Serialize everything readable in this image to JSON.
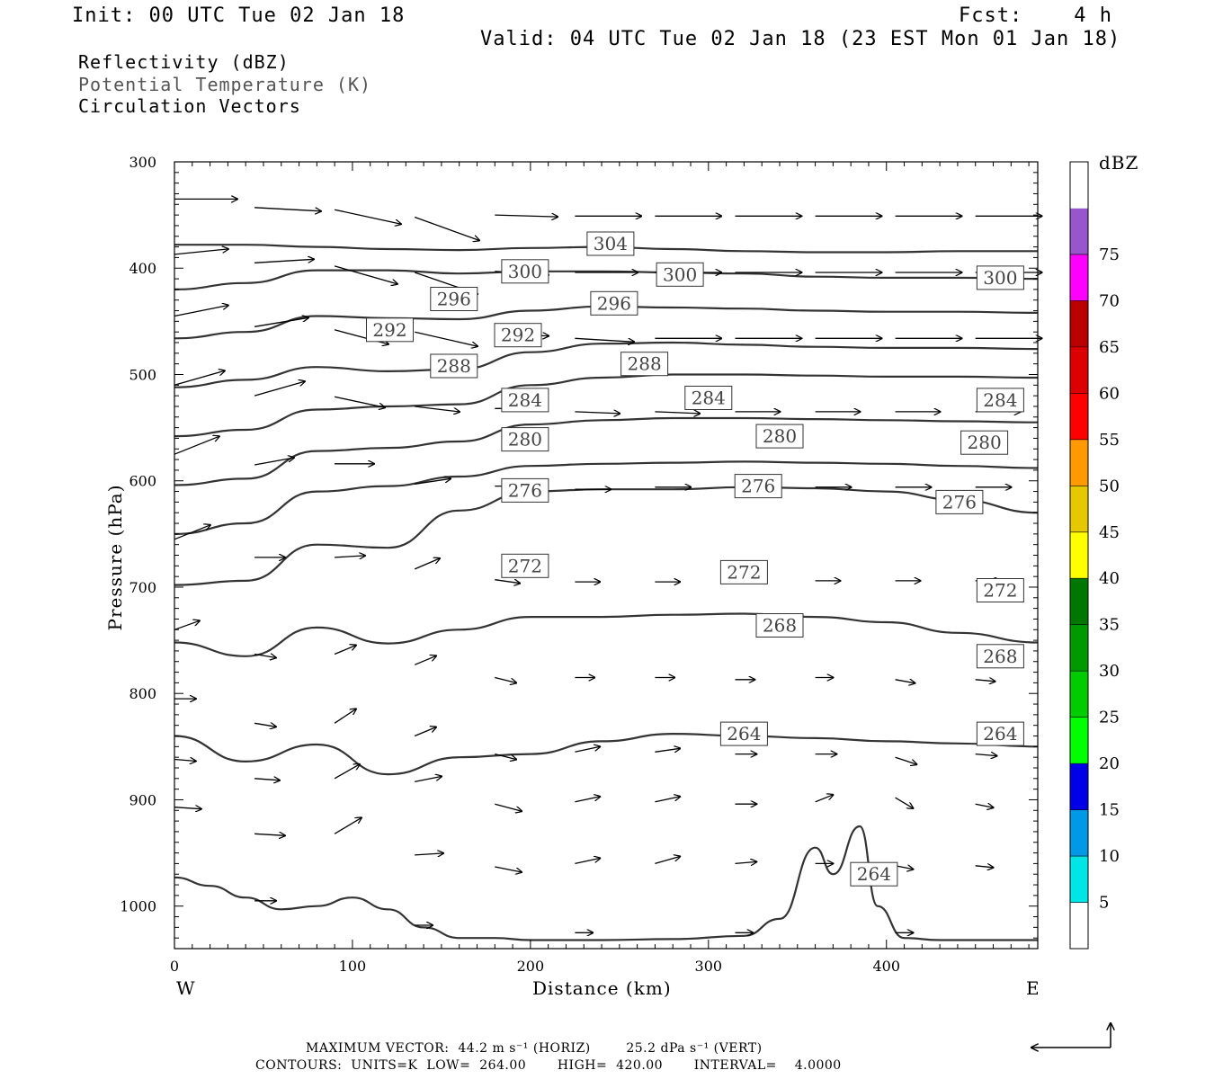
{
  "header": {
    "init": "Init: 00 UTC Tue 02 Jan 18",
    "fcst": "Fcst:    4 h",
    "valid": "Valid: 04 UTC Tue 02 Jan 18 (23 EST Mon 01 Jan 18)",
    "fields": [
      "Reflectivity (dBZ)",
      "Potential Temperature (K)",
      "Circulation Vectors"
    ]
  },
  "footer": {
    "max_vector": "MAXIMUM VECTOR:  44.2 m s⁻¹ (HORIZ)        25.2 dPa s⁻¹ (VERT)",
    "contours": "CONTOURS:  UNITS=K  LOW=  264.00       HIGH=  420.00       INTERVAL=    4.0000"
  },
  "colors": {
    "contour": "#333333",
    "vector": "#000000",
    "frame": "#000000"
  },
  "chart_data": {
    "type": "line",
    "xlabel": "Distance (km)",
    "ylabel": "Pressure (hPa)",
    "xlim": [
      0,
      485
    ],
    "ylim": [
      1040,
      300
    ],
    "x_ticks": [
      0,
      100,
      200,
      300,
      400
    ],
    "y_ticks": [
      300,
      400,
      500,
      600,
      700,
      800,
      900,
      1000
    ],
    "x_end_labels": {
      "left": "W",
      "right": "E"
    },
    "colorbar": {
      "title": "dBZ",
      "ticks": [
        5,
        10,
        15,
        20,
        25,
        30,
        35,
        40,
        45,
        50,
        55,
        60,
        65,
        70,
        75
      ],
      "colors": [
        "#ffffff",
        "#00e6e6",
        "#0099e6",
        "#0000e6",
        "#00ff00",
        "#00cc00",
        "#009900",
        "#007700",
        "#ffff00",
        "#e6c800",
        "#ff9900",
        "#ff0000",
        "#dd0000",
        "#bb0000",
        "#ff00ff",
        "#9955cc",
        "#ffffff"
      ]
    },
    "series": [
      {
        "name": "304",
        "x": [
          0,
          40,
          80,
          120,
          160,
          200,
          240,
          280,
          320,
          360,
          400,
          440,
          485
        ],
        "y": [
          378,
          378,
          380,
          382,
          383,
          381,
          380,
          382,
          384,
          385,
          385,
          384,
          384
        ]
      },
      {
        "name": "300",
        "x": [
          0,
          40,
          80,
          120,
          160,
          200,
          240,
          280,
          320,
          360,
          400,
          440,
          485
        ],
        "y": [
          420,
          414,
          402,
          402,
          405,
          403,
          403,
          404,
          405,
          408,
          409,
          409,
          410
        ]
      },
      {
        "name": "296",
        "x": [
          0,
          40,
          80,
          120,
          160,
          200,
          240,
          280,
          320,
          360,
          400,
          440,
          485
        ],
        "y": [
          466,
          460,
          445,
          447,
          448,
          440,
          436,
          437,
          438,
          440,
          441,
          441,
          442
        ]
      },
      {
        "name": "292",
        "x": [
          0,
          40,
          80,
          120,
          160,
          200,
          240,
          280,
          320,
          360,
          400,
          440,
          485
        ],
        "y": [
          512,
          505,
          493,
          497,
          495,
          479,
          471,
          470,
          472,
          474,
          475,
          475,
          476
        ]
      },
      {
        "name": "288",
        "x": [
          0,
          40,
          80,
          120,
          160,
          200,
          240,
          280,
          320,
          360,
          400,
          440,
          485
        ],
        "y": [
          558,
          552,
          533,
          530,
          528,
          510,
          503,
          500,
          500,
          501,
          502,
          502,
          503
        ]
      },
      {
        "name": "284",
        "x": [
          0,
          40,
          80,
          120,
          160,
          200,
          240,
          280,
          320,
          360,
          400,
          440,
          485
        ],
        "y": [
          604,
          598,
          572,
          569,
          563,
          547,
          543,
          541,
          541,
          542,
          543,
          544,
          545
        ]
      },
      {
        "name": "280",
        "x": [
          0,
          40,
          80,
          120,
          160,
          200,
          240,
          280,
          320,
          360,
          400,
          440,
          485
        ],
        "y": [
          650,
          640,
          610,
          605,
          596,
          586,
          584,
          583,
          582,
          583,
          584,
          586,
          588
        ]
      },
      {
        "name": "276",
        "x": [
          0,
          40,
          80,
          120,
          160,
          200,
          240,
          280,
          320,
          360,
          400,
          440,
          485
        ],
        "y": [
          698,
          694,
          660,
          663,
          628,
          610,
          608,
          608,
          606,
          607,
          610,
          618,
          630
        ]
      },
      {
        "name": "272",
        "x": [
          0,
          40,
          80,
          120,
          160,
          200,
          240,
          280,
          320,
          360,
          400,
          440,
          485
        ],
        "y": [
          752,
          765,
          738,
          753,
          740,
          728,
          728,
          726,
          725,
          728,
          733,
          743,
          752
        ]
      },
      {
        "name": "268",
        "x": [
          0,
          40,
          80,
          120,
          160,
          200,
          240,
          280,
          320,
          360,
          400,
          440,
          485
        ],
        "y": [
          840,
          864,
          848,
          876,
          860,
          857,
          845,
          838,
          840,
          842,
          845,
          847,
          850
        ]
      },
      {
        "name": "264",
        "x": [
          0,
          20,
          40,
          60,
          80,
          100,
          120,
          140,
          160,
          180,
          200,
          240,
          280,
          320,
          340,
          360,
          370,
          385,
          395,
          410,
          430,
          485
        ],
        "y": [
          973,
          981,
          992,
          1003,
          1000,
          992,
          1003,
          1020,
          1030,
          1030,
          1032,
          1032,
          1031,
          1028,
          1012,
          945,
          970,
          925,
          1000,
          1030,
          1032,
          1032
        ]
      }
    ],
    "contour_labels": [
      {
        "text": "304",
        "x": 245,
        "y": 377
      },
      {
        "text": "300",
        "x": 197,
        "y": 403
      },
      {
        "text": "300",
        "x": 284,
        "y": 406
      },
      {
        "text": "300",
        "x": 464,
        "y": 409
      },
      {
        "text": "296",
        "x": 157,
        "y": 429
      },
      {
        "text": "296",
        "x": 247,
        "y": 433
      },
      {
        "text": "292",
        "x": 121,
        "y": 458
      },
      {
        "text": "292",
        "x": 193,
        "y": 463
      },
      {
        "text": "288",
        "x": 157,
        "y": 492
      },
      {
        "text": "288",
        "x": 264,
        "y": 490
      },
      {
        "text": "284",
        "x": 197,
        "y": 524
      },
      {
        "text": "284",
        "x": 300,
        "y": 522
      },
      {
        "text": "284",
        "x": 464,
        "y": 524
      },
      {
        "text": "280",
        "x": 197,
        "y": 561
      },
      {
        "text": "280",
        "x": 340,
        "y": 558
      },
      {
        "text": "280",
        "x": 455,
        "y": 564
      },
      {
        "text": "276",
        "x": 197,
        "y": 609
      },
      {
        "text": "276",
        "x": 328,
        "y": 605
      },
      {
        "text": "276",
        "x": 441,
        "y": 620
      },
      {
        "text": "272",
        "x": 197,
        "y": 680
      },
      {
        "text": "272",
        "x": 320,
        "y": 686
      },
      {
        "text": "272",
        "x": 464,
        "y": 703
      },
      {
        "text": "268",
        "x": 340,
        "y": 736
      },
      {
        "text": "268",
        "x": 464,
        "y": 765
      },
      {
        "text": "264",
        "x": 320,
        "y": 838
      },
      {
        "text": "264",
        "x": 464,
        "y": 838
      },
      {
        "text": "264",
        "x": 393,
        "y": 970
      }
    ],
    "vectors": [
      {
        "x": 0,
        "y": 335,
        "u": 35,
        "w": 0
      },
      {
        "x": 45,
        "y": 343,
        "u": 37,
        "w": -2
      },
      {
        "x": 90,
        "y": 345,
        "u": 37,
        "w": -8
      },
      {
        "x": 135,
        "y": 352,
        "u": 36,
        "w": -13
      },
      {
        "x": 180,
        "y": 350,
        "u": 35,
        "w": -1
      },
      {
        "x": 225,
        "y": 351,
        "u": 37,
        "w": 0
      },
      {
        "x": 270,
        "y": 351,
        "u": 37,
        "w": 0
      },
      {
        "x": 315,
        "y": 351,
        "u": 37,
        "w": 0
      },
      {
        "x": 360,
        "y": 351,
        "u": 37,
        "w": 0
      },
      {
        "x": 405,
        "y": 351,
        "u": 37,
        "w": 0
      },
      {
        "x": 450,
        "y": 351,
        "u": 37,
        "w": 0
      },
      {
        "x": 0,
        "y": 387,
        "u": 30,
        "w": 3
      },
      {
        "x": 45,
        "y": 395,
        "u": 33,
        "w": 2
      },
      {
        "x": 90,
        "y": 398,
        "u": 35,
        "w": -10
      },
      {
        "x": 135,
        "y": 404,
        "u": 35,
        "w": -12
      },
      {
        "x": 180,
        "y": 403,
        "u": 30,
        "w": -2
      },
      {
        "x": 225,
        "y": 404,
        "u": 35,
        "w": 0
      },
      {
        "x": 270,
        "y": 404,
        "u": 37,
        "w": 0
      },
      {
        "x": 315,
        "y": 404,
        "u": 37,
        "w": 0
      },
      {
        "x": 360,
        "y": 404,
        "u": 37,
        "w": 0
      },
      {
        "x": 405,
        "y": 404,
        "u": 37,
        "w": 0
      },
      {
        "x": 450,
        "y": 404,
        "u": 37,
        "w": 0
      },
      {
        "x": 0,
        "y": 445,
        "u": 30,
        "w": 6
      },
      {
        "x": 45,
        "y": 455,
        "u": 30,
        "w": 5
      },
      {
        "x": 90,
        "y": 458,
        "u": 30,
        "w": -8
      },
      {
        "x": 135,
        "y": 460,
        "u": 35,
        "w": -8
      },
      {
        "x": 180,
        "y": 462,
        "u": 30,
        "w": -1
      },
      {
        "x": 225,
        "y": 466,
        "u": 33,
        "w": -2
      },
      {
        "x": 270,
        "y": 466,
        "u": 37,
        "w": 0
      },
      {
        "x": 315,
        "y": 466,
        "u": 37,
        "w": 0
      },
      {
        "x": 360,
        "y": 466,
        "u": 37,
        "w": 0
      },
      {
        "x": 405,
        "y": 466,
        "u": 37,
        "w": 0
      },
      {
        "x": 450,
        "y": 466,
        "u": 37,
        "w": 0
      },
      {
        "x": 0,
        "y": 510,
        "u": 28,
        "w": 8
      },
      {
        "x": 45,
        "y": 520,
        "u": 28,
        "w": 8
      },
      {
        "x": 90,
        "y": 521,
        "u": 28,
        "w": -6
      },
      {
        "x": 135,
        "y": 530,
        "u": 25,
        "w": -3
      },
      {
        "x": 180,
        "y": 532,
        "u": 25,
        "w": 0
      },
      {
        "x": 225,
        "y": 535,
        "u": 25,
        "w": -1
      },
      {
        "x": 270,
        "y": 535,
        "u": 25,
        "w": -1
      },
      {
        "x": 315,
        "y": 535,
        "u": 25,
        "w": 0
      },
      {
        "x": 360,
        "y": 535,
        "u": 25,
        "w": 0
      },
      {
        "x": 405,
        "y": 535,
        "u": 25,
        "w": 0
      },
      {
        "x": 450,
        "y": 535,
        "u": 25,
        "w": 0
      },
      {
        "x": 0,
        "y": 575,
        "u": 25,
        "w": 10
      },
      {
        "x": 45,
        "y": 585,
        "u": 22,
        "w": 4
      },
      {
        "x": 90,
        "y": 584,
        "u": 22,
        "w": 0
      },
      {
        "x": 135,
        "y": 603,
        "u": 20,
        "w": 3
      },
      {
        "x": 180,
        "y": 605,
        "u": 20,
        "w": 0
      },
      {
        "x": 225,
        "y": 608,
        "u": 20,
        "w": 0
      },
      {
        "x": 270,
        "y": 606,
        "u": 20,
        "w": 0
      },
      {
        "x": 315,
        "y": 606,
        "u": 20,
        "w": 0
      },
      {
        "x": 360,
        "y": 606,
        "u": 20,
        "w": 0
      },
      {
        "x": 405,
        "y": 606,
        "u": 20,
        "w": 0
      },
      {
        "x": 450,
        "y": 606,
        "u": 20,
        "w": 0
      },
      {
        "x": 0,
        "y": 655,
        "u": 20,
        "w": 8
      },
      {
        "x": 45,
        "y": 672,
        "u": 17,
        "w": 0
      },
      {
        "x": 90,
        "y": 672,
        "u": 17,
        "w": 1
      },
      {
        "x": 135,
        "y": 683,
        "u": 14,
        "w": 6
      },
      {
        "x": 180,
        "y": 693,
        "u": 14,
        "w": -2
      },
      {
        "x": 225,
        "y": 695,
        "u": 14,
        "w": 0
      },
      {
        "x": 270,
        "y": 695,
        "u": 14,
        "w": 0
      },
      {
        "x": 315,
        "y": 693,
        "u": 14,
        "w": 1
      },
      {
        "x": 360,
        "y": 694,
        "u": 14,
        "w": 0
      },
      {
        "x": 405,
        "y": 694,
        "u": 14,
        "w": 0
      },
      {
        "x": 450,
        "y": 694,
        "u": 14,
        "w": 0
      },
      {
        "x": 0,
        "y": 740,
        "u": 14,
        "w": 5
      },
      {
        "x": 45,
        "y": 763,
        "u": 12,
        "w": -2
      },
      {
        "x": 90,
        "y": 763,
        "u": 12,
        "w": 5
      },
      {
        "x": 135,
        "y": 773,
        "u": 12,
        "w": 5
      },
      {
        "x": 180,
        "y": 785,
        "u": 12,
        "w": -3
      },
      {
        "x": 225,
        "y": 785,
        "u": 11,
        "w": 0
      },
      {
        "x": 270,
        "y": 785,
        "u": 11,
        "w": 0
      },
      {
        "x": 315,
        "y": 787,
        "u": 11,
        "w": 0
      },
      {
        "x": 360,
        "y": 785,
        "u": 10,
        "w": 0
      },
      {
        "x": 405,
        "y": 787,
        "u": 11,
        "w": -2
      },
      {
        "x": 450,
        "y": 787,
        "u": 11,
        "w": -1
      },
      {
        "x": 0,
        "y": 805,
        "u": 12,
        "w": 0
      },
      {
        "x": 45,
        "y": 828,
        "u": 12,
        "w": -2
      },
      {
        "x": 90,
        "y": 828,
        "u": 12,
        "w": 8
      },
      {
        "x": 135,
        "y": 840,
        "u": 12,
        "w": 5
      },
      {
        "x": 180,
        "y": 857,
        "u": 12,
        "w": -3
      },
      {
        "x": 225,
        "y": 855,
        "u": 14,
        "w": 3
      },
      {
        "x": 270,
        "y": 855,
        "u": 14,
        "w": 2
      },
      {
        "x": 315,
        "y": 857,
        "u": 12,
        "w": 0
      },
      {
        "x": 360,
        "y": 857,
        "u": 12,
        "w": 0
      },
      {
        "x": 405,
        "y": 860,
        "u": 12,
        "w": -4
      },
      {
        "x": 450,
        "y": 857,
        "u": 12,
        "w": -1
      },
      {
        "x": 0,
        "y": 862,
        "u": 12,
        "w": -1
      },
      {
        "x": 45,
        "y": 880,
        "u": 14,
        "w": -1
      },
      {
        "x": 90,
        "y": 880,
        "u": 14,
        "w": 8
      },
      {
        "x": 135,
        "y": 883,
        "u": 15,
        "w": 3
      },
      {
        "x": 180,
        "y": 904,
        "u": 15,
        "w": -4
      },
      {
        "x": 225,
        "y": 902,
        "u": 14,
        "w": 3
      },
      {
        "x": 270,
        "y": 902,
        "u": 14,
        "w": 3
      },
      {
        "x": 315,
        "y": 904,
        "u": 12,
        "w": 0
      },
      {
        "x": 360,
        "y": 902,
        "u": 10,
        "w": 4
      },
      {
        "x": 405,
        "y": 898,
        "u": 10,
        "w": -6
      },
      {
        "x": 450,
        "y": 904,
        "u": 10,
        "w": -2
      },
      {
        "x": 0,
        "y": 907,
        "u": 15,
        "w": -1
      },
      {
        "x": 45,
        "y": 932,
        "u": 17,
        "w": -1
      },
      {
        "x": 90,
        "y": 932,
        "u": 15,
        "w": 9
      },
      {
        "x": 135,
        "y": 952,
        "u": 16,
        "w": 1
      },
      {
        "x": 180,
        "y": 963,
        "u": 15,
        "w": -3
      },
      {
        "x": 225,
        "y": 960,
        "u": 14,
        "w": 3
      },
      {
        "x": 270,
        "y": 960,
        "u": 14,
        "w": 4
      },
      {
        "x": 315,
        "y": 960,
        "u": 12,
        "w": 1
      },
      {
        "x": 360,
        "y": 960,
        "u": 10,
        "w": 0
      },
      {
        "x": 405,
        "y": 962,
        "u": 10,
        "w": -2
      },
      {
        "x": 450,
        "y": 962,
        "u": 10,
        "w": -1
      },
      {
        "x": 45,
        "y": 995,
        "u": 12,
        "w": 0
      },
      {
        "x": 135,
        "y": 1018,
        "u": 10,
        "w": 0
      },
      {
        "x": 225,
        "y": 1025,
        "u": 10,
        "w": 0
      },
      {
        "x": 315,
        "y": 1025,
        "u": 10,
        "w": 0
      },
      {
        "x": 405,
        "y": 1025,
        "u": 10,
        "w": 0
      }
    ]
  }
}
